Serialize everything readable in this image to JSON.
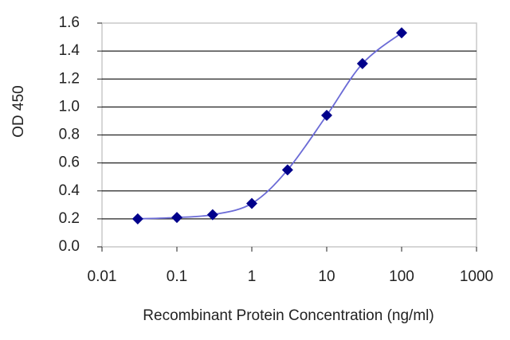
{
  "chart_data": {
    "type": "scatter",
    "x_label": "Recombinant Protein Concentration (ng/ml)",
    "y_label": "OD 450",
    "x": [
      0.03,
      0.1,
      0.3,
      1,
      3,
      10,
      30,
      100
    ],
    "values": [
      0.2,
      0.21,
      0.23,
      0.31,
      0.55,
      0.94,
      1.31,
      1.53
    ],
    "color": "#00008b",
    "line_color": "#6b6bd6",
    "xscale": "log",
    "xlim": [
      0.01,
      1000
    ],
    "xticks": [
      0.01,
      0.1,
      1,
      10,
      100,
      1000
    ],
    "ylim": [
      0,
      1.6
    ],
    "yticks": [
      {
        "value": 0,
        "label": "0.0"
      },
      0.2,
      0.4,
      0.6,
      0.8,
      {
        "value": 1,
        "label": "1.0"
      },
      1.2,
      1.4,
      1.6
    ],
    "grid": true
  }
}
